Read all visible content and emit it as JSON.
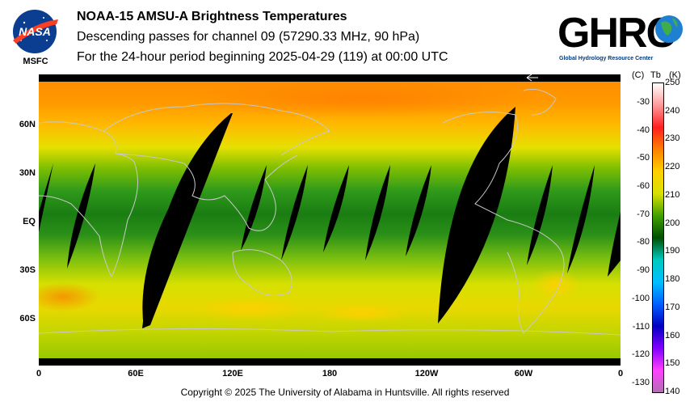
{
  "header": {
    "title": "NOAA-15 AMSU-A Brightness Temperatures",
    "subtitle": "Descending passes for channel 09 (57290.33 MHz, 90 hPa)",
    "period": "For the 24-hour period beginning 2025-04-29 (119) at 00:00 UTC"
  },
  "logos": {
    "nasa_text": "NASA",
    "msfc_label": "MSFC",
    "ghrc_text": "GHRC",
    "ghrc_tagline": "Global Hydrology Resource Center"
  },
  "map": {
    "lat_labels": [
      "60N",
      "30N",
      "EQ",
      "30S",
      "60S"
    ],
    "lon_labels": [
      "0",
      "60E",
      "120E",
      "180",
      "120W",
      "60W",
      "0"
    ],
    "colors": {
      "no_data": "#000000",
      "coastline": "#c8c8c8"
    }
  },
  "colorbar": {
    "header_c": "(C)",
    "header_tb": "Tb",
    "header_k": "(K)",
    "kelvin_ticks": [
      "250",
      "240",
      "230",
      "220",
      "210",
      "200",
      "190",
      "180",
      "170",
      "160",
      "150",
      "140"
    ],
    "celsius_ticks": [
      "-30",
      "-40",
      "-50",
      "-60",
      "-70",
      "-80",
      "-90",
      "-100",
      "-110",
      "-120",
      "-130"
    ],
    "kelvin_range": [
      140,
      250
    ],
    "stops": [
      "#ffffff",
      "#ff9999",
      "#ff2020",
      "#ff8000",
      "#ffd000",
      "#d8e000",
      "#40a000",
      "#005000",
      "#00c8c0",
      "#00c0ff",
      "#0060ff",
      "#0000c0",
      "#8000ff",
      "#ff40ff",
      "#b070b0"
    ]
  },
  "footer": {
    "copyright": "Copyright © 2025 The University of Alabama in Huntsville.  All rights reserved"
  }
}
